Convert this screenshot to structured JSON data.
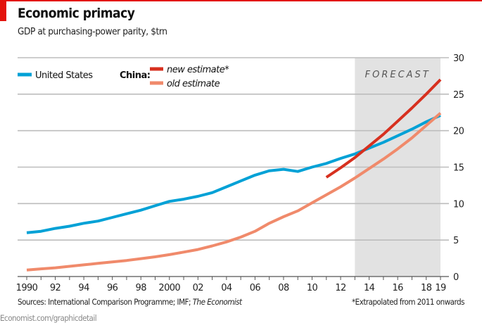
{
  "header": {
    "title": "Economic primacy",
    "subtitle": "GDP at purchasing-power parity, $trn"
  },
  "footer": {
    "sources_prefix": "Sources: International Comparison Programme; IMF; ",
    "sources_italic": "The Economist",
    "note": "*Extrapolated from 2011 onwards",
    "credit": "Economist.com/graphicdetail"
  },
  "chart_data": {
    "type": "line",
    "title": "Economic primacy",
    "subtitle": "GDP at purchasing-power parity, $trn",
    "xlabel": "",
    "ylabel": "$trn",
    "xlim": [
      1990,
      2019
    ],
    "ylim": [
      0,
      30
    ],
    "yticks": [
      0,
      5,
      10,
      15,
      20,
      25,
      30
    ],
    "xtick_labels": [
      {
        "x": 1990,
        "label": "1990"
      },
      {
        "x": 1992,
        "label": "92"
      },
      {
        "x": 1994,
        "label": "94"
      },
      {
        "x": 1996,
        "label": "96"
      },
      {
        "x": 1998,
        "label": "98"
      },
      {
        "x": 2000,
        "label": "2000"
      },
      {
        "x": 2002,
        "label": "02"
      },
      {
        "x": 2004,
        "label": "04"
      },
      {
        "x": 2006,
        "label": "06"
      },
      {
        "x": 2008,
        "label": "08"
      },
      {
        "x": 2010,
        "label": "10"
      },
      {
        "x": 2012,
        "label": "12"
      },
      {
        "x": 2014,
        "label": "14"
      },
      {
        "x": 2016,
        "label": "16"
      },
      {
        "x": 2018,
        "label": "18"
      },
      {
        "x": 2019,
        "label": "19"
      }
    ],
    "grid": true,
    "forecast": {
      "label": "FORECAST",
      "from": 2013,
      "to": 2019,
      "color": "#e2e2e2"
    },
    "legend": {
      "placement": "top-left",
      "china_label": "China:"
    },
    "series": [
      {
        "name": "United States",
        "color": "#00a1d6",
        "x_start": 1990,
        "values": [
          6.0,
          6.2,
          6.6,
          6.9,
          7.3,
          7.6,
          8.1,
          8.6,
          9.1,
          9.7,
          10.3,
          10.6,
          11.0,
          11.5,
          12.3,
          13.1,
          13.9,
          14.5,
          14.7,
          14.4,
          15.0,
          15.5,
          16.2,
          16.8,
          17.6,
          18.4,
          19.3,
          20.2,
          21.2,
          22.1
        ]
      },
      {
        "name": "new estimate*",
        "color": "#d7301f",
        "x_start": 2011,
        "values": [
          13.6,
          14.9,
          16.3,
          17.9,
          19.5,
          21.3,
          23.1,
          25.0,
          27.0
        ]
      },
      {
        "name": "old estimate",
        "color": "#f08a6b",
        "x_start": 1990,
        "values": [
          0.9,
          1.05,
          1.2,
          1.4,
          1.6,
          1.8,
          2.0,
          2.2,
          2.45,
          2.7,
          3.0,
          3.35,
          3.7,
          4.2,
          4.75,
          5.4,
          6.2,
          7.3,
          8.2,
          9.0,
          10.1,
          11.2,
          12.3,
          13.5,
          14.8,
          16.1,
          17.5,
          19.0,
          20.7,
          22.4
        ]
      }
    ]
  }
}
